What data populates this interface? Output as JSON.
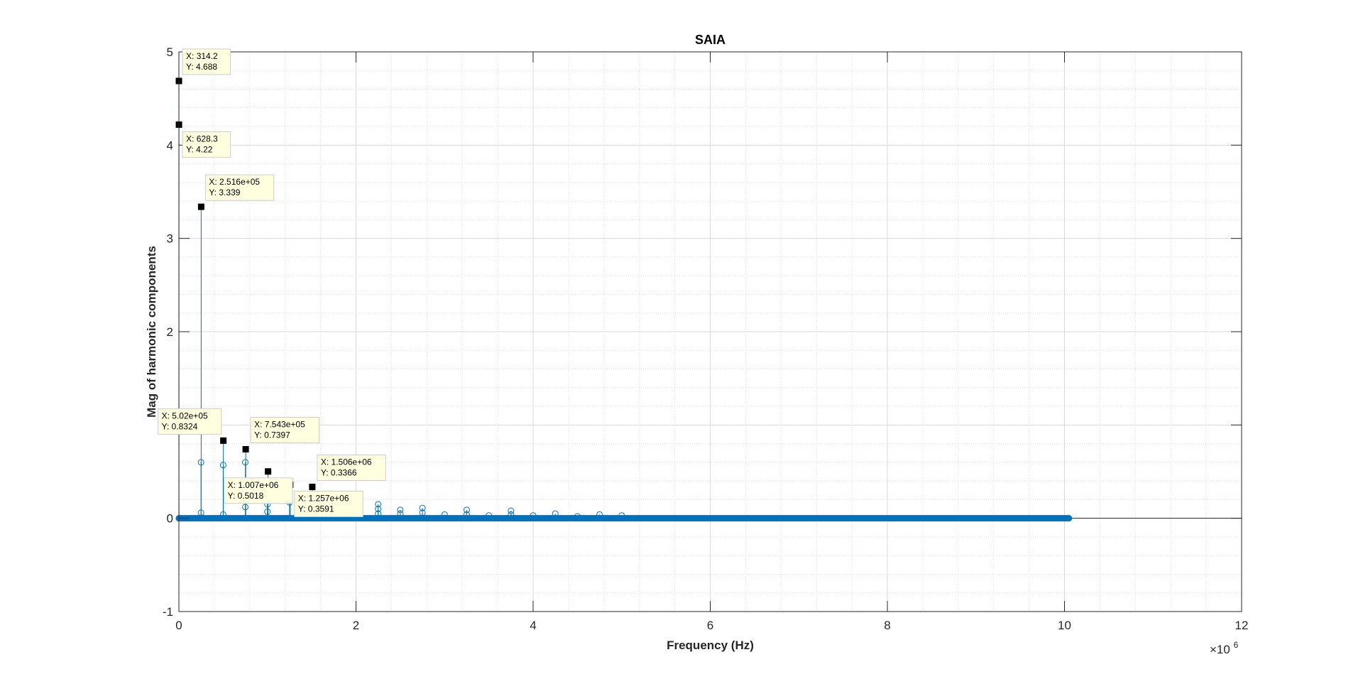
{
  "chart_data": {
    "type": "stem",
    "title": "SAIA",
    "xlabel": "Frequency (Hz)",
    "ylabel": "Mag of harmonic components",
    "x_exponent_label": "×10",
    "x_exponent_power": "6",
    "x_scale": 1000000,
    "xlim": [
      0,
      12
    ],
    "ylim": [
      -1,
      5
    ],
    "x_ticks": [
      "0",
      "2",
      "4",
      "6",
      "8",
      "10",
      "12"
    ],
    "y_ticks": [
      "-1",
      "0",
      "1",
      "2",
      "3",
      "4",
      "5"
    ],
    "grid": true,
    "minor_grid": true,
    "series_color": "#0072BD",
    "dense_zero_range": [
      0,
      10.05
    ],
    "datatips": [
      {
        "x": 0.0003142,
        "y": 4.688,
        "label_x": "X: 314.2",
        "label_y": "Y: 4.688"
      },
      {
        "x": 0.0006283,
        "y": 4.22,
        "label_x": "X: 628.3",
        "label_y": "Y: 4.22"
      },
      {
        "x": 0.2516,
        "y": 3.339,
        "label_x": "X: 2.516e+05",
        "label_y": "Y: 3.339"
      },
      {
        "x": 0.502,
        "y": 0.8324,
        "label_x": "X: 5.02e+05",
        "label_y": "Y: 0.8324"
      },
      {
        "x": 0.7543,
        "y": 0.7397,
        "label_x": "X: 7.543e+05",
        "label_y": "Y: 0.7397"
      },
      {
        "x": 1.007,
        "y": 0.5018,
        "label_x": "X: 1.007e+06",
        "label_y": "Y: 0.5018"
      },
      {
        "x": 1.257,
        "y": 0.3591,
        "label_x": "X: 1.257e+06",
        "label_y": "Y: 0.3591"
      },
      {
        "x": 1.506,
        "y": 0.3366,
        "label_x": "X: 1.506e+06",
        "label_y": "Y: 0.3366"
      }
    ],
    "secondary_stems": [
      {
        "x": 0.25,
        "y": 0.6
      },
      {
        "x": 0.25,
        "y": 0.06
      },
      {
        "x": 0.5,
        "y": 0.57
      },
      {
        "x": 0.5,
        "y": 0.04
      },
      {
        "x": 0.75,
        "y": 0.6
      },
      {
        "x": 0.75,
        "y": 0.12
      },
      {
        "x": 1.0,
        "y": 0.23
      },
      {
        "x": 1.0,
        "y": 0.15
      },
      {
        "x": 1.0,
        "y": 0.07
      },
      {
        "x": 1.25,
        "y": 0.19
      },
      {
        "x": 1.25,
        "y": 0.17
      },
      {
        "x": 1.5,
        "y": 0.2
      },
      {
        "x": 1.5,
        "y": 0.1
      },
      {
        "x": 1.75,
        "y": 0.15
      },
      {
        "x": 1.75,
        "y": 0.05
      },
      {
        "x": 2.0,
        "y": 0.22
      },
      {
        "x": 2.0,
        "y": 0.08
      },
      {
        "x": 2.25,
        "y": 0.15
      },
      {
        "x": 2.25,
        "y": 0.1
      },
      {
        "x": 2.25,
        "y": 0.05
      },
      {
        "x": 2.5,
        "y": 0.09
      },
      {
        "x": 2.5,
        "y": 0.05
      },
      {
        "x": 2.75,
        "y": 0.11
      },
      {
        "x": 2.75,
        "y": 0.06
      },
      {
        "x": 3.0,
        "y": 0.04
      },
      {
        "x": 3.25,
        "y": 0.09
      },
      {
        "x": 3.25,
        "y": 0.04
      },
      {
        "x": 3.5,
        "y": 0.03
      },
      {
        "x": 3.75,
        "y": 0.08
      },
      {
        "x": 3.75,
        "y": 0.04
      },
      {
        "x": 4.0,
        "y": 0.03
      },
      {
        "x": 4.25,
        "y": 0.05
      },
      {
        "x": 4.5,
        "y": 0.02
      },
      {
        "x": 4.75,
        "y": 0.04
      },
      {
        "x": 5.0,
        "y": 0.03
      }
    ]
  }
}
